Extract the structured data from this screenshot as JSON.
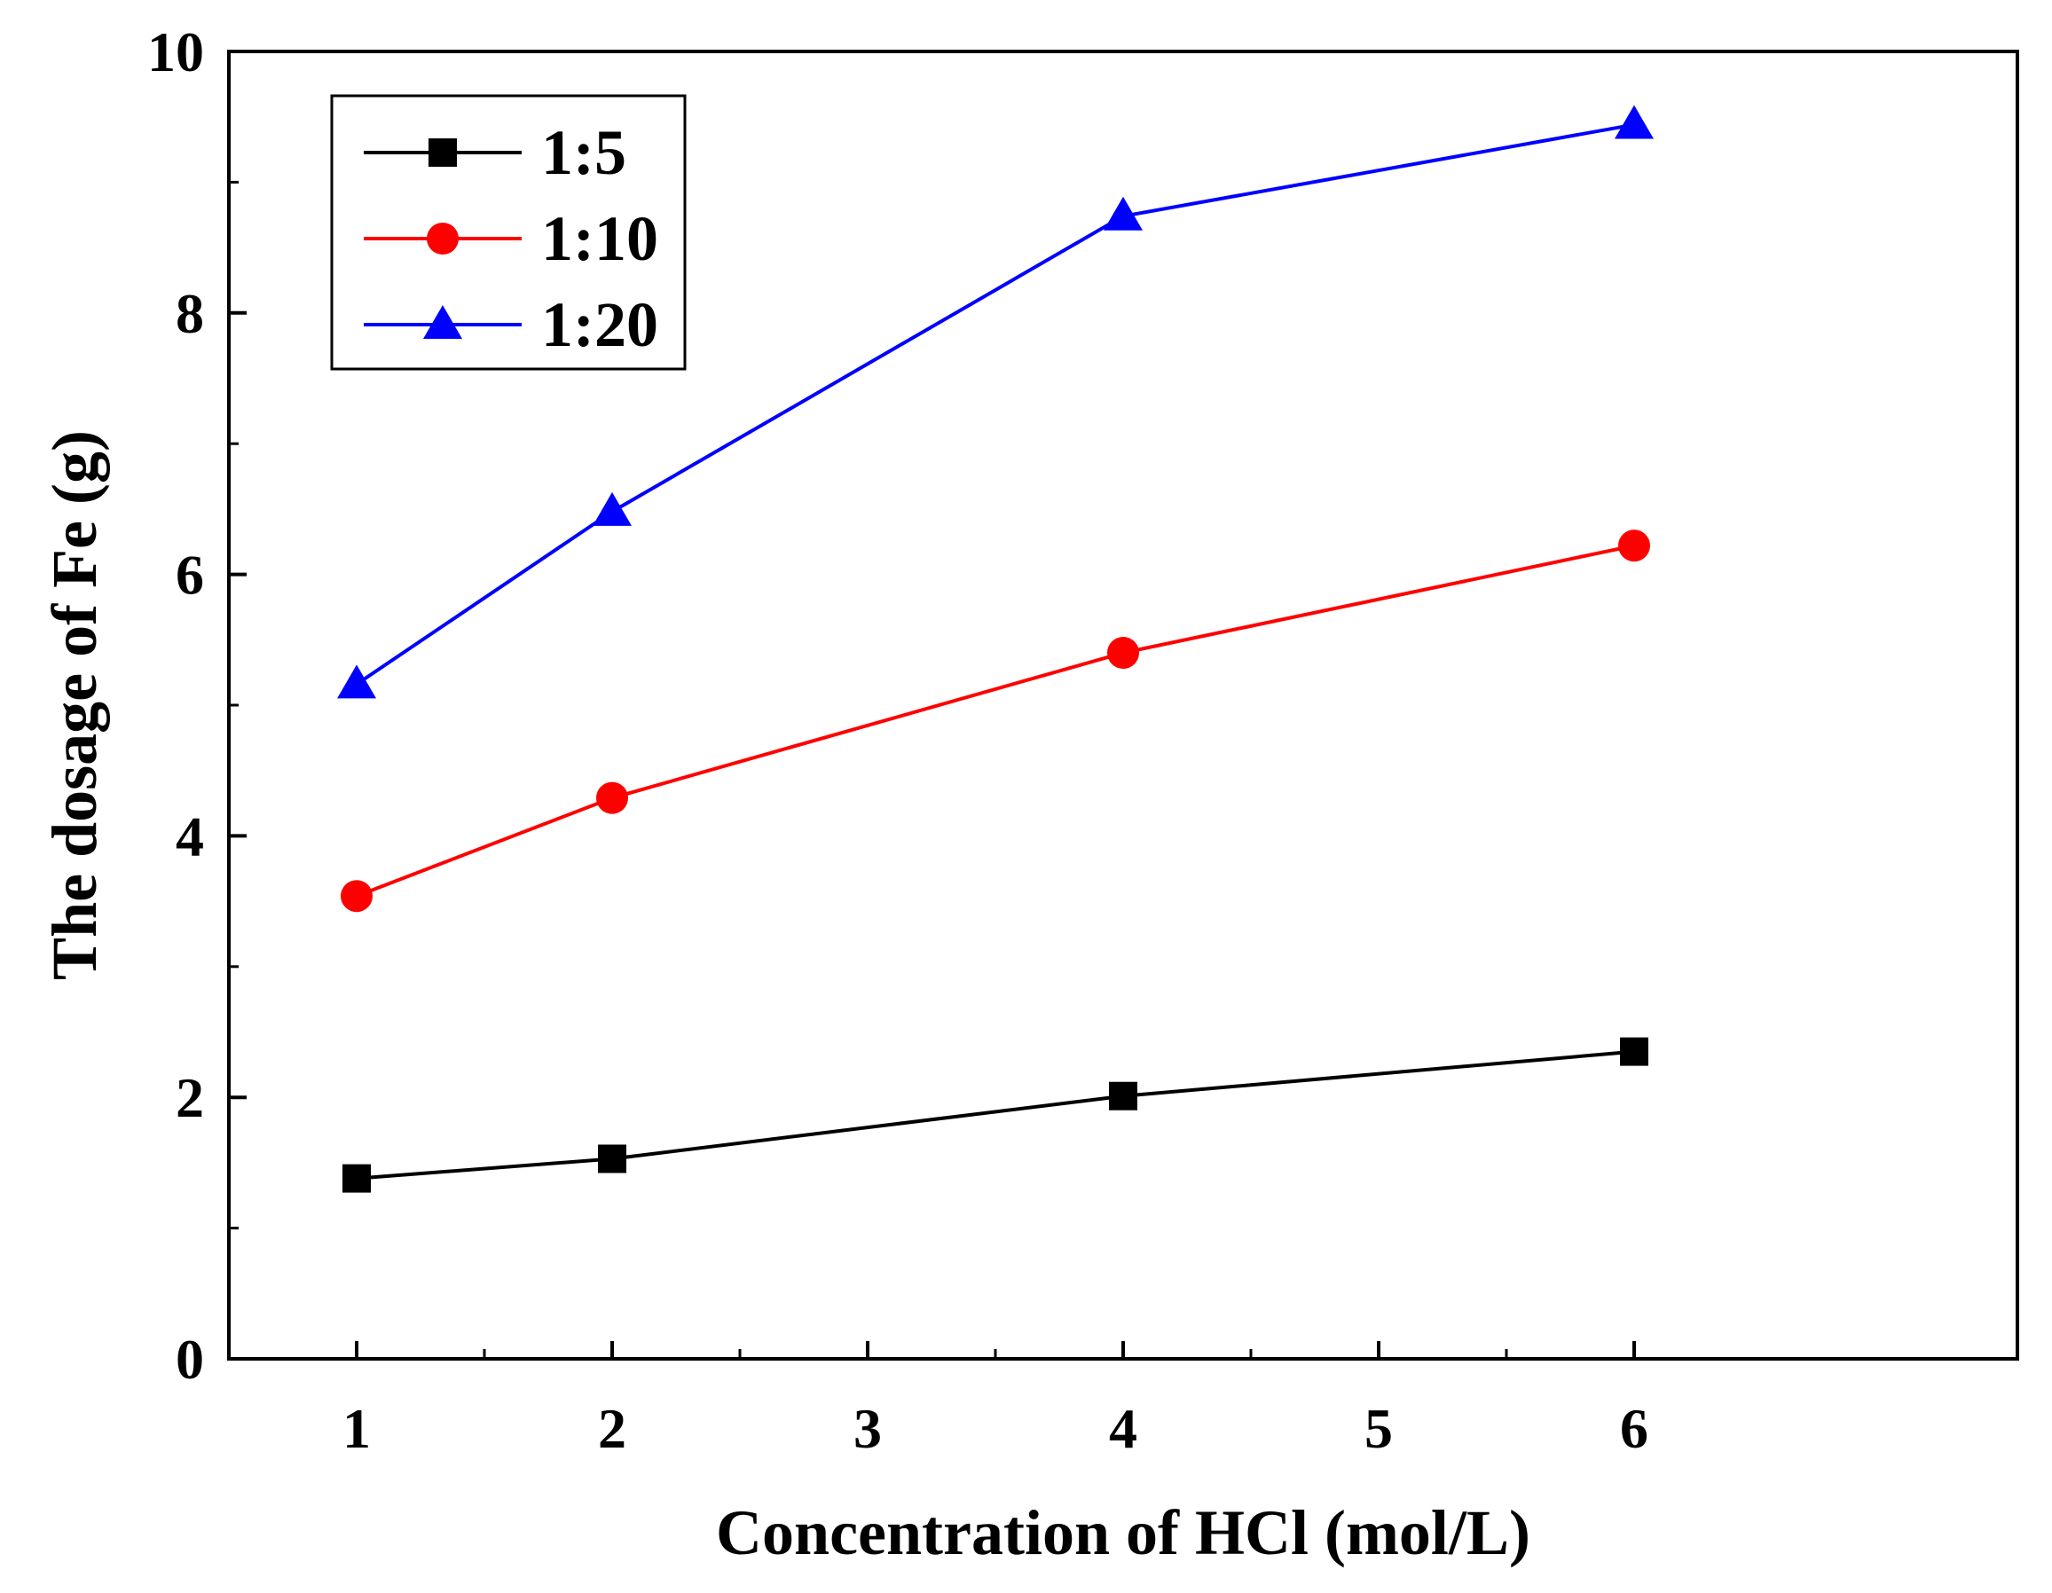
{
  "chart_data": {
    "type": "line",
    "title": "",
    "xlabel": "Concentration of HCl (mol/L)",
    "ylabel": "The dosage of Fe (g)",
    "xlim": [
      0.5,
      7.5
    ],
    "ylim": [
      0,
      10
    ],
    "x_ticks": [
      1,
      2,
      3,
      4,
      5,
      6
    ],
    "x_tick_labels": [
      "1",
      "2",
      "3",
      "4",
      "5",
      "6"
    ],
    "x_positions": [
      1,
      2,
      4,
      6
    ],
    "y_ticks": [
      0,
      2,
      4,
      6,
      8,
      10
    ],
    "y_tick_labels": [
      "0",
      "2",
      "4",
      "6",
      "8",
      "10"
    ],
    "grid": false,
    "legend_position": "top-left",
    "series": [
      {
        "name": "1:5",
        "color": "#000000",
        "marker": "square",
        "values": [
          1.38,
          1.53,
          2.01,
          2.35
        ]
      },
      {
        "name": "1:10",
        "color": "#ff0000",
        "marker": "circle",
        "values": [
          3.54,
          4.29,
          5.4,
          6.22
        ]
      },
      {
        "name": "1:20",
        "color": "#0000ff",
        "marker": "triangle",
        "values": [
          5.16,
          6.48,
          8.74,
          9.44
        ]
      }
    ]
  }
}
